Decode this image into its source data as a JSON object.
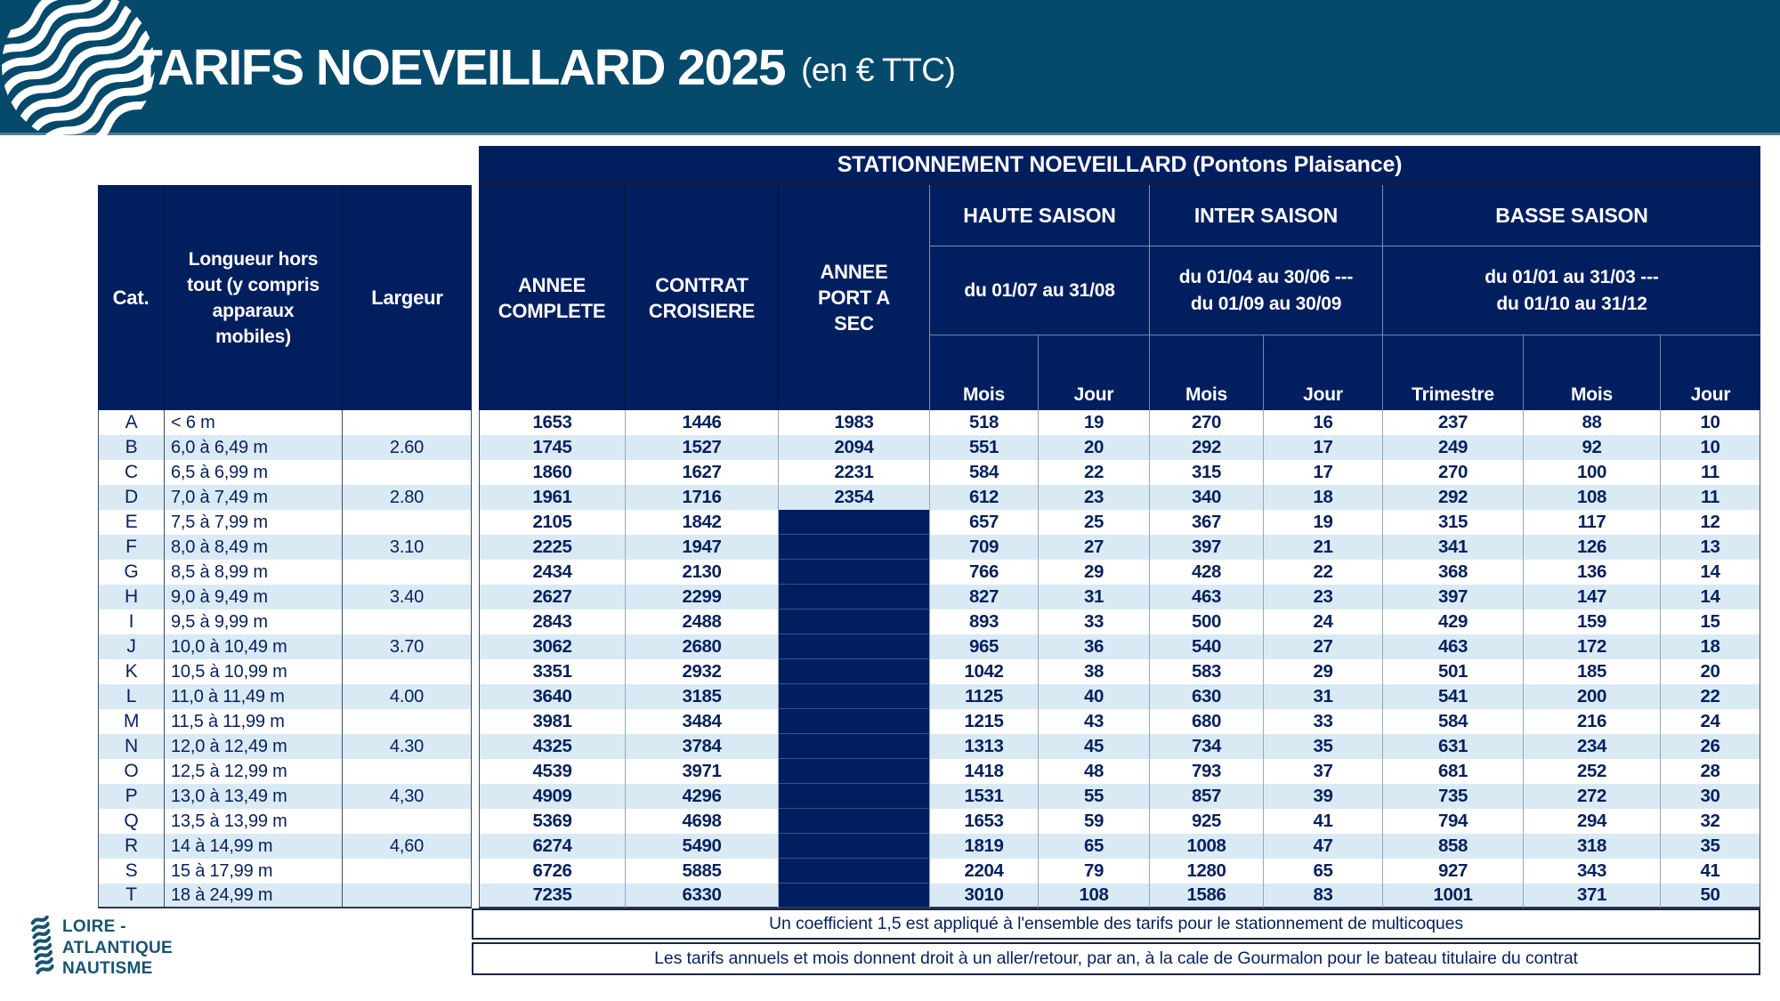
{
  "page": {
    "title": "TARIFS NOEVEILLARD 2025",
    "title_suffix": "(en € TTC)",
    "brand": {
      "line1": "LOIRE -",
      "line2": "ATLANTIQUE",
      "line3": "NAUTISME"
    },
    "colors": {
      "banner_teal": "#05496B",
      "header_navy": "#011F5E",
      "stripe_blue": "#D9EAF5",
      "text_navy": "#06215C",
      "brand_teal": "#19536F"
    }
  },
  "table": {
    "banner": "STATIONNEMENT NOEVEILLARD (Pontons Plaisance)",
    "columns": {
      "cat": "Cat.",
      "longueur": "Longueur hors tout (y compris apparaux mobiles)",
      "largeur": "Largeur",
      "annee_complete": "ANNEE COMPLETE",
      "contrat_croisiere": "CONTRAT CROISIERE",
      "annee_port_a_sec": "ANNEE PORT A SEC"
    },
    "seasons": [
      {
        "label": "HAUTE SAISON",
        "dates_line1": "du 01/07 au 31/08",
        "dates_line2": ""
      },
      {
        "label": "INTER SAISON",
        "dates_line1": "du 01/04 au 30/06 ---",
        "dates_line2": "du 01/09 au 30/09"
      },
      {
        "label": "BASSE SAISON",
        "dates_line1": "du 01/01 au 31/03 ---",
        "dates_line2": "du 01/10 au 31/12"
      }
    ],
    "sub_headers": [
      "Mois",
      "Jour",
      "Mois",
      "Jour",
      "Trimestre",
      "Mois",
      "Jour"
    ],
    "rows": [
      {
        "cat": "A",
        "longueur": "< 6 m",
        "largeur": "",
        "annee_complete": 1653,
        "contrat_croisiere": 1446,
        "annee_port_a_sec": 1983,
        "hs_mois": 518,
        "hs_jour": 19,
        "is_mois": 270,
        "is_jour": 16,
        "bs_trimestre": 237,
        "bs_mois": 88,
        "bs_jour": 10
      },
      {
        "cat": "B",
        "longueur": "6,0 à 6,49 m",
        "largeur": "2.60",
        "annee_complete": 1745,
        "contrat_croisiere": 1527,
        "annee_port_a_sec": 2094,
        "hs_mois": 551,
        "hs_jour": 20,
        "is_mois": 292,
        "is_jour": 17,
        "bs_trimestre": 249,
        "bs_mois": 92,
        "bs_jour": 10
      },
      {
        "cat": "C",
        "longueur": "6,5 à 6,99 m",
        "largeur": "",
        "annee_complete": 1860,
        "contrat_croisiere": 1627,
        "annee_port_a_sec": 2231,
        "hs_mois": 584,
        "hs_jour": 22,
        "is_mois": 315,
        "is_jour": 17,
        "bs_trimestre": 270,
        "bs_mois": 100,
        "bs_jour": 11
      },
      {
        "cat": "D",
        "longueur": "7,0 à 7,49 m",
        "largeur": "2.80",
        "annee_complete": 1961,
        "contrat_croisiere": 1716,
        "annee_port_a_sec": 2354,
        "hs_mois": 612,
        "hs_jour": 23,
        "is_mois": 340,
        "is_jour": 18,
        "bs_trimestre": 292,
        "bs_mois": 108,
        "bs_jour": 11
      },
      {
        "cat": "E",
        "longueur": "7,5 à 7,99 m",
        "largeur": "",
        "annee_complete": 2105,
        "contrat_croisiere": 1842,
        "annee_port_a_sec": null,
        "hs_mois": 657,
        "hs_jour": 25,
        "is_mois": 367,
        "is_jour": 19,
        "bs_trimestre": 315,
        "bs_mois": 117,
        "bs_jour": 12
      },
      {
        "cat": "F",
        "longueur": "8,0 à 8,49 m",
        "largeur": "3.10",
        "annee_complete": 2225,
        "contrat_croisiere": 1947,
        "annee_port_a_sec": null,
        "hs_mois": 709,
        "hs_jour": 27,
        "is_mois": 397,
        "is_jour": 21,
        "bs_trimestre": 341,
        "bs_mois": 126,
        "bs_jour": 13
      },
      {
        "cat": "G",
        "longueur": "8,5 à 8,99 m",
        "largeur": "",
        "annee_complete": 2434,
        "contrat_croisiere": 2130,
        "annee_port_a_sec": null,
        "hs_mois": 766,
        "hs_jour": 29,
        "is_mois": 428,
        "is_jour": 22,
        "bs_trimestre": 368,
        "bs_mois": 136,
        "bs_jour": 14
      },
      {
        "cat": "H",
        "longueur": "9,0 à 9,49 m",
        "largeur": "3.40",
        "annee_complete": 2627,
        "contrat_croisiere": 2299,
        "annee_port_a_sec": null,
        "hs_mois": 827,
        "hs_jour": 31,
        "is_mois": 463,
        "is_jour": 23,
        "bs_trimestre": 397,
        "bs_mois": 147,
        "bs_jour": 14
      },
      {
        "cat": "I",
        "longueur": "9,5 à 9,99 m",
        "largeur": "",
        "annee_complete": 2843,
        "contrat_croisiere": 2488,
        "annee_port_a_sec": null,
        "hs_mois": 893,
        "hs_jour": 33,
        "is_mois": 500,
        "is_jour": 24,
        "bs_trimestre": 429,
        "bs_mois": 159,
        "bs_jour": 15
      },
      {
        "cat": "J",
        "longueur": "10,0 à 10,49 m",
        "largeur": "3.70",
        "annee_complete": 3062,
        "contrat_croisiere": 2680,
        "annee_port_a_sec": null,
        "hs_mois": 965,
        "hs_jour": 36,
        "is_mois": 540,
        "is_jour": 27,
        "bs_trimestre": 463,
        "bs_mois": 172,
        "bs_jour": 18
      },
      {
        "cat": "K",
        "longueur": "10,5 à 10,99 m",
        "largeur": "",
        "annee_complete": 3351,
        "contrat_croisiere": 2932,
        "annee_port_a_sec": null,
        "hs_mois": 1042,
        "hs_jour": 38,
        "is_mois": 583,
        "is_jour": 29,
        "bs_trimestre": 501,
        "bs_mois": 185,
        "bs_jour": 20
      },
      {
        "cat": "L",
        "longueur": "11,0 à 11,49 m",
        "largeur": "4.00",
        "annee_complete": 3640,
        "contrat_croisiere": 3185,
        "annee_port_a_sec": null,
        "hs_mois": 1125,
        "hs_jour": 40,
        "is_mois": 630,
        "is_jour": 31,
        "bs_trimestre": 541,
        "bs_mois": 200,
        "bs_jour": 22
      },
      {
        "cat": "M",
        "longueur": "11,5 à 11,99 m",
        "largeur": "",
        "annee_complete": 3981,
        "contrat_croisiere": 3484,
        "annee_port_a_sec": null,
        "hs_mois": 1215,
        "hs_jour": 43,
        "is_mois": 680,
        "is_jour": 33,
        "bs_trimestre": 584,
        "bs_mois": 216,
        "bs_jour": 24
      },
      {
        "cat": "N",
        "longueur": "12,0 à 12,49 m",
        "largeur": "4.30",
        "annee_complete": 4325,
        "contrat_croisiere": 3784,
        "annee_port_a_sec": null,
        "hs_mois": 1313,
        "hs_jour": 45,
        "is_mois": 734,
        "is_jour": 35,
        "bs_trimestre": 631,
        "bs_mois": 234,
        "bs_jour": 26
      },
      {
        "cat": "O",
        "longueur": "12,5 à 12,99 m",
        "largeur": "",
        "annee_complete": 4539,
        "contrat_croisiere": 3971,
        "annee_port_a_sec": null,
        "hs_mois": 1418,
        "hs_jour": 48,
        "is_mois": 793,
        "is_jour": 37,
        "bs_trimestre": 681,
        "bs_mois": 252,
        "bs_jour": 28
      },
      {
        "cat": "P",
        "longueur": "13,0 à 13,49 m",
        "largeur": "4,30",
        "annee_complete": 4909,
        "contrat_croisiere": 4296,
        "annee_port_a_sec": null,
        "hs_mois": 1531,
        "hs_jour": 55,
        "is_mois": 857,
        "is_jour": 39,
        "bs_trimestre": 735,
        "bs_mois": 272,
        "bs_jour": 30
      },
      {
        "cat": "Q",
        "longueur": "13,5 à 13,99 m",
        "largeur": "",
        "annee_complete": 5369,
        "contrat_croisiere": 4698,
        "annee_port_a_sec": null,
        "hs_mois": 1653,
        "hs_jour": 59,
        "is_mois": 925,
        "is_jour": 41,
        "bs_trimestre": 794,
        "bs_mois": 294,
        "bs_jour": 32
      },
      {
        "cat": "R",
        "longueur": "14 à 14,99 m",
        "largeur": "4,60",
        "annee_complete": 6274,
        "contrat_croisiere": 5490,
        "annee_port_a_sec": null,
        "hs_mois": 1819,
        "hs_jour": 65,
        "is_mois": 1008,
        "is_jour": 47,
        "bs_trimestre": 858,
        "bs_mois": 318,
        "bs_jour": 35
      },
      {
        "cat": "S",
        "longueur": "15 à 17,99 m",
        "largeur": "",
        "annee_complete": 6726,
        "contrat_croisiere": 5885,
        "annee_port_a_sec": null,
        "hs_mois": 2204,
        "hs_jour": 79,
        "is_mois": 1280,
        "is_jour": 65,
        "bs_trimestre": 927,
        "bs_mois": 343,
        "bs_jour": 41
      },
      {
        "cat": "T",
        "longueur": "18 à 24,99 m",
        "largeur": "",
        "annee_complete": 7235,
        "contrat_croisiere": 6330,
        "annee_port_a_sec": null,
        "hs_mois": 3010,
        "hs_jour": 108,
        "is_mois": 1586,
        "is_jour": 83,
        "bs_trimestre": 1001,
        "bs_mois": 371,
        "bs_jour": 50
      }
    ],
    "notes": [
      "Un coefficient 1,5 est appliqué à l'ensemble des tarifs pour le stationnement de multicoques",
      "Les tarifs annuels et mois donnent droit à un aller/retour, par an, à la cale de Gourmalon pour le bateau titulaire du contrat"
    ]
  }
}
